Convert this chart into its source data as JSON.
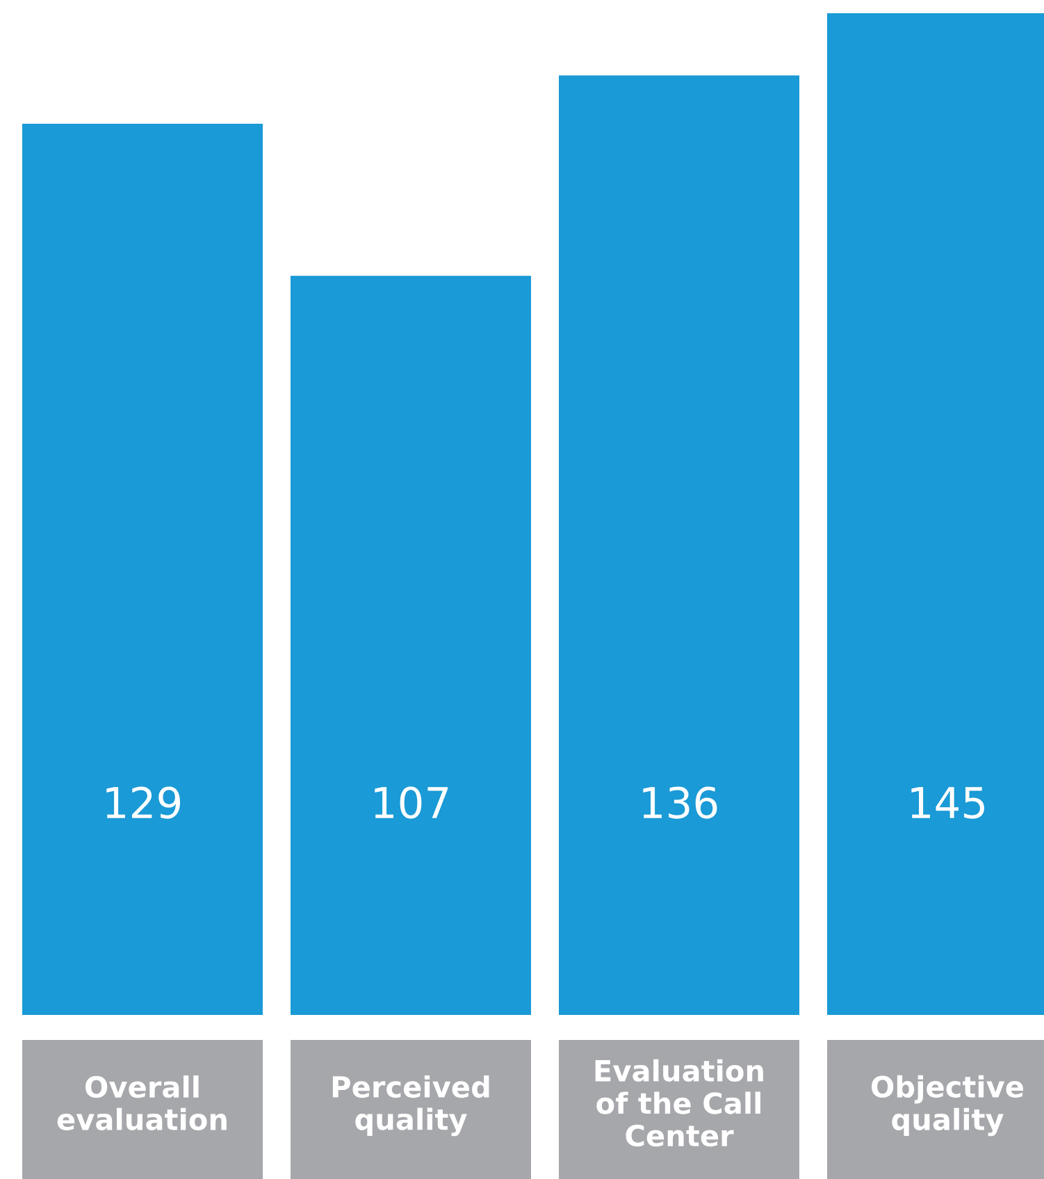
{
  "chart_data": {
    "type": "bar",
    "categories": [
      "Overall\nevaluation",
      "Perceived\nquality",
      "Evaluation\nof the Call\nCenter",
      "Objective\nquality"
    ],
    "values": [
      129,
      107,
      136,
      145
    ],
    "color": "#1a9ad6",
    "data_labels": true,
    "grid": false,
    "legend": false
  }
}
